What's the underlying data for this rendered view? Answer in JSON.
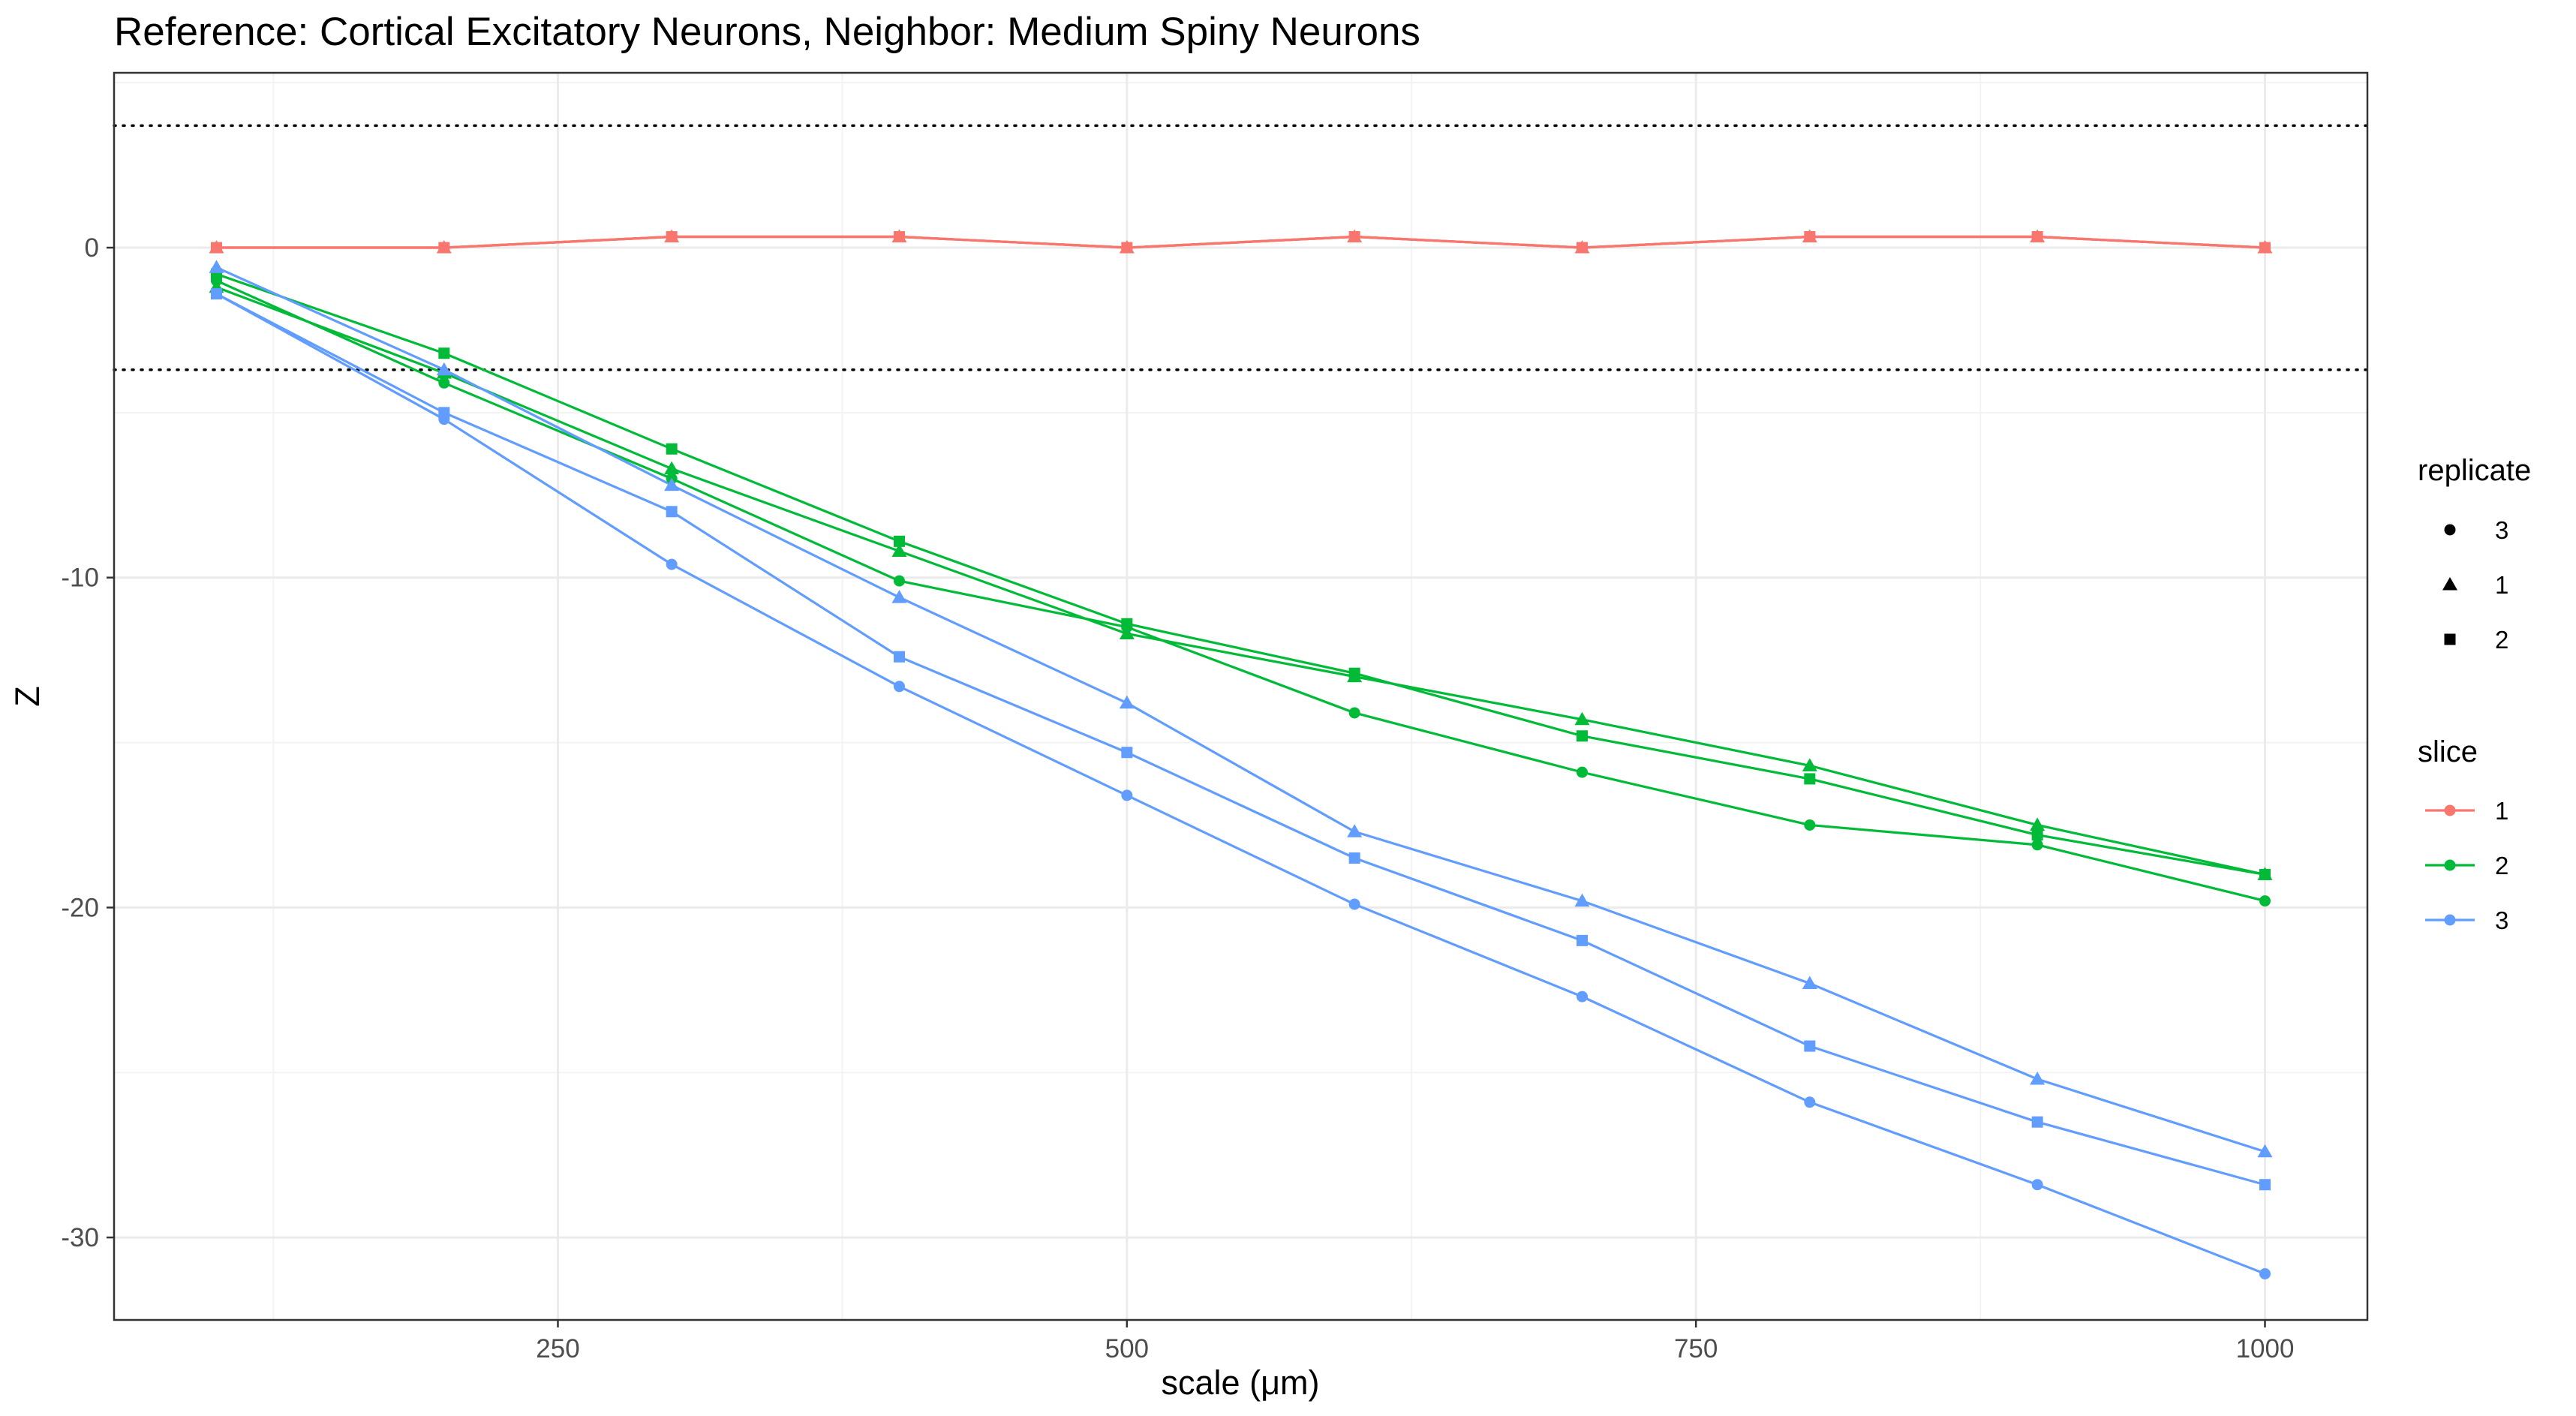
{
  "chart_data": {
    "type": "line",
    "title": "Reference: Cortical Excitatory Neurons, Neighbor: Medium Spiny Neurons",
    "xlabel": "scale (μm)",
    "ylabel": "Z",
    "xlim": [
      55,
      1045
    ],
    "ylim": [
      -32.5,
      5.3
    ],
    "x_ticks": [
      250,
      500,
      750,
      1000
    ],
    "y_ticks": [
      0,
      -10,
      -20,
      -30
    ],
    "x_tick_labels": [
      "250",
      "500",
      "750",
      "1000"
    ],
    "y_tick_labels": [
      "0",
      "-10",
      "-20",
      "-30"
    ],
    "reference_lines": [
      3.7,
      -3.7
    ],
    "grid": true,
    "legend_position": "right",
    "legends": {
      "replicate": {
        "title": "replicate",
        "labels": [
          "3",
          "1",
          "2"
        ],
        "shapes": [
          "circle",
          "triangle",
          "square"
        ]
      },
      "slice": {
        "title": "slice",
        "labels": [
          "1",
          "2",
          "3"
        ],
        "colors": [
          "#F8766D",
          "#00BA38",
          "#619CFF"
        ]
      }
    },
    "x": [
      100,
      200,
      300,
      400,
      500,
      600,
      700,
      800,
      900,
      1000
    ],
    "series": [
      {
        "slice": "1",
        "replicate": "3",
        "color": "#F8766D",
        "shape": "circle",
        "values": [
          0.0,
          0.0,
          0.33,
          0.33,
          0.0,
          0.33,
          0.0,
          0.33,
          0.33,
          0.0
        ]
      },
      {
        "slice": "1",
        "replicate": "1",
        "color": "#F8766D",
        "shape": "triangle",
        "values": [
          0.0,
          0.0,
          0.33,
          0.33,
          0.0,
          0.33,
          0.0,
          0.33,
          0.33,
          0.0
        ]
      },
      {
        "slice": "1",
        "replicate": "2",
        "color": "#F8766D",
        "shape": "square",
        "values": [
          0.0,
          0.0,
          0.33,
          0.33,
          0.0,
          0.33,
          0.0,
          0.33,
          0.33,
          0.0
        ]
      },
      {
        "slice": "2",
        "replicate": "3",
        "color": "#00BA38",
        "shape": "circle",
        "values": [
          -1.0,
          -4.1,
          -7.0,
          -10.1,
          -11.5,
          -14.1,
          -15.9,
          -17.5,
          -18.1,
          -19.8
        ]
      },
      {
        "slice": "2",
        "replicate": "1",
        "color": "#00BA38",
        "shape": "triangle",
        "values": [
          -1.2,
          -3.8,
          -6.7,
          -9.2,
          -11.7,
          -13.0,
          -14.3,
          -15.7,
          -17.5,
          -19.0
        ]
      },
      {
        "slice": "2",
        "replicate": "2",
        "color": "#00BA38",
        "shape": "square",
        "values": [
          -0.8,
          -3.2,
          -6.1,
          -8.9,
          -11.4,
          -12.9,
          -14.8,
          -16.1,
          -17.8,
          -19.0
        ]
      },
      {
        "slice": "3",
        "replicate": "3",
        "color": "#619CFF",
        "shape": "circle",
        "values": [
          -1.4,
          -5.2,
          -9.6,
          -13.3,
          -16.6,
          -19.9,
          -22.7,
          -25.9,
          -28.4,
          -31.1
        ]
      },
      {
        "slice": "3",
        "replicate": "1",
        "color": "#619CFF",
        "shape": "triangle",
        "values": [
          -0.6,
          -3.7,
          -7.2,
          -10.6,
          -13.8,
          -17.7,
          -19.8,
          -22.3,
          -25.2,
          -27.4
        ]
      },
      {
        "slice": "3",
        "replicate": "2",
        "color": "#619CFF",
        "shape": "square",
        "values": [
          -1.4,
          -5.0,
          -8.0,
          -12.4,
          -15.3,
          -18.5,
          -21.0,
          -24.2,
          -26.5,
          -28.4
        ]
      }
    ]
  }
}
